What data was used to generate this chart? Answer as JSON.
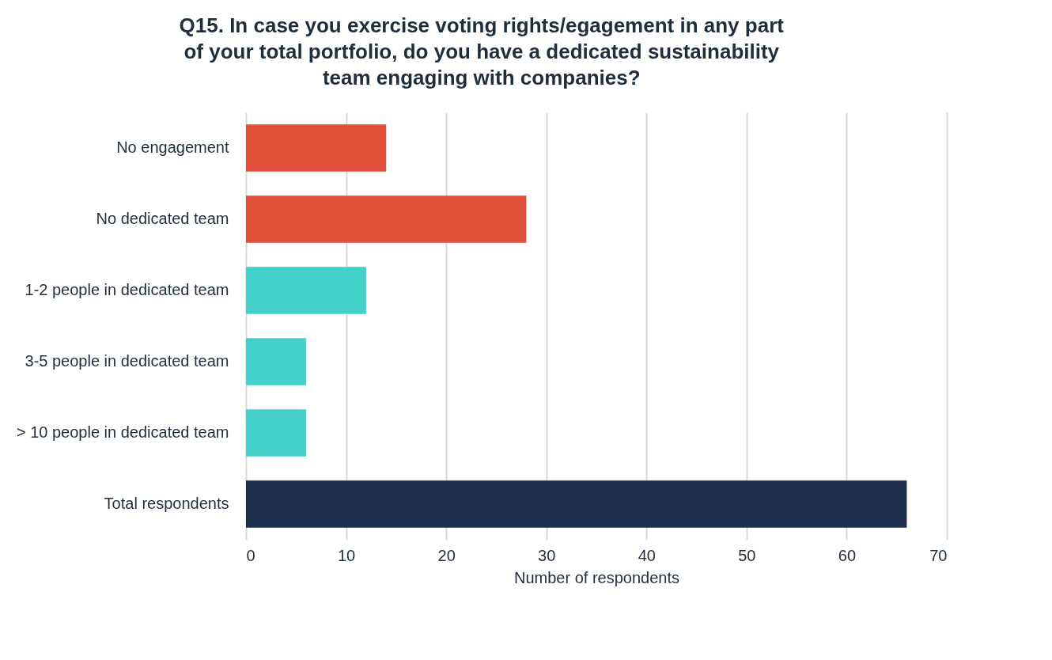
{
  "chart_data": {
    "type": "bar",
    "orientation": "horizontal",
    "title": "Q15. In case you exercise voting rights/egagement in any part of your total portfolio, do you have a dedicated sustainability team engaging with companies?",
    "categories": [
      "No engagement",
      "No dedicated team",
      "1-2 people in dedicated team",
      "3-5 people in dedicated team",
      "> 10 people in dedicated team",
      "Total respondents"
    ],
    "values": [
      14,
      28,
      12,
      6,
      6,
      66
    ],
    "colors": [
      "#e04e39",
      "#e04e39",
      "#45d1cb",
      "#45d1cb",
      "#45d1cb",
      "#1d2f4c"
    ],
    "xlabel": "Number of respondents",
    "xlim": [
      0,
      70
    ],
    "xticks": [
      0,
      10,
      20,
      30,
      40,
      50,
      60,
      70
    ],
    "grid": "x",
    "legend": false
  }
}
